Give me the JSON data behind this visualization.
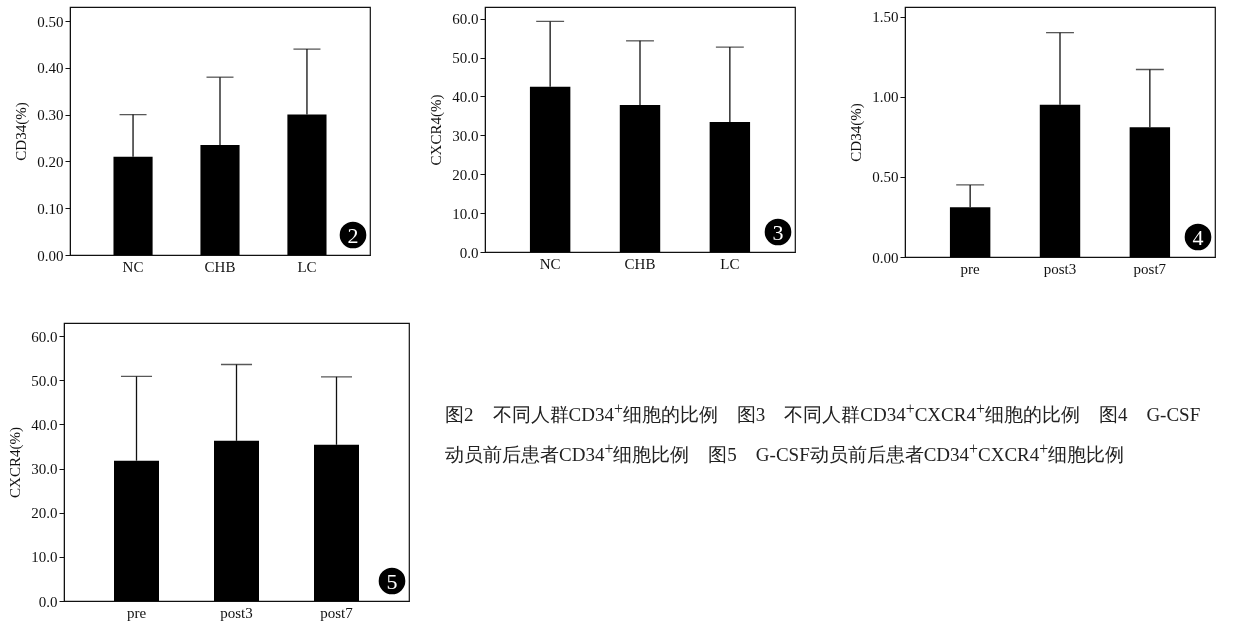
{
  "chart_data": [
    {
      "type": "bar",
      "ylabel": "CD34(%)",
      "categories": [
        "NC",
        "CHB",
        "LC"
      ],
      "values": [
        0.21,
        0.235,
        0.3
      ],
      "errors": [
        [
          0.21,
          0.3
        ],
        [
          0.235,
          0.38
        ],
        [
          0.3,
          0.44
        ]
      ],
      "color": "#000000",
      "ylim": [
        0,
        0.53
      ],
      "yticks": [
        {
          "value": 0,
          "label": "0.00"
        },
        {
          "value": 0.1,
          "label": "0.10"
        },
        {
          "value": 0.2,
          "label": "0.20"
        },
        {
          "value": 0.3,
          "label": "0.30"
        },
        {
          "value": 0.4,
          "label": "0.40"
        },
        {
          "value": 0.5,
          "label": "0.50"
        }
      ],
      "annotations": [
        "2"
      ]
    },
    {
      "type": "bar",
      "ylabel": "CXCR4(%)",
      "categories": [
        "NC",
        "CHB",
        "LC"
      ],
      "values": [
        42.5,
        37.8,
        33.4
      ],
      "errors": [
        [
          42.5,
          59.3
        ],
        [
          37.8,
          54.3
        ],
        [
          33.4,
          52.7
        ]
      ],
      "color": "#000000",
      "ylim": [
        0,
        63
      ],
      "yticks": [
        {
          "value": 0,
          "label": "0.0"
        },
        {
          "value": 10,
          "label": "10.0"
        },
        {
          "value": 20,
          "label": "20.0"
        },
        {
          "value": 30,
          "label": "30.0"
        },
        {
          "value": 40,
          "label": "40.0"
        },
        {
          "value": 50,
          "label": "50.0"
        },
        {
          "value": 60,
          "label": "60.0"
        }
      ],
      "annotations": [
        "3"
      ]
    },
    {
      "type": "bar",
      "ylabel": "CD34(%)",
      "categories": [
        "pre",
        "post3",
        "post7"
      ],
      "values": [
        0.31,
        0.95,
        0.81
      ],
      "errors": [
        [
          0.31,
          0.45
        ],
        [
          0.95,
          1.4
        ],
        [
          0.81,
          1.17
        ]
      ],
      "color": "#000000",
      "ylim": [
        0,
        1.56
      ],
      "yticks": [
        {
          "value": 0,
          "label": "0.00"
        },
        {
          "value": 0.5,
          "label": "0.50"
        },
        {
          "value": 1,
          "label": "1.00"
        },
        {
          "value": 1.5,
          "label": "1.50"
        }
      ],
      "annotations": [
        "4"
      ]
    },
    {
      "type": "bar",
      "ylabel": "CXCR4(%)",
      "categories": [
        "pre",
        "post3",
        "post7"
      ],
      "values": [
        31.8,
        36.3,
        35.4
      ],
      "errors": [
        [
          31.8,
          50.9
        ],
        [
          36.3,
          53.6
        ],
        [
          35.4,
          50.8
        ]
      ],
      "color": "#000000",
      "ylim": [
        0,
        63
      ],
      "yticks": [
        {
          "value": 0,
          "label": "0.0"
        },
        {
          "value": 10,
          "label": "10.0"
        },
        {
          "value": 20,
          "label": "20.0"
        },
        {
          "value": 30,
          "label": "30.0"
        },
        {
          "value": 40,
          "label": "40.0"
        },
        {
          "value": 50,
          "label": "50.0"
        },
        {
          "value": 60,
          "label": "60.0"
        }
      ],
      "annotations": [
        "5",
        "图2　不同人群CD34$^{+}$细胞的比例　图3　不同人群CD34$^{+}$CXCR4$^{+}$细胞的比例　图4　G-CSF动员前后患者CD34$^{+}$细胞比例　图5　G-CSF动员前后患者CD34$^{+}$CXCR4$^{+}$细胞比例"
      ]
    }
  ]
}
